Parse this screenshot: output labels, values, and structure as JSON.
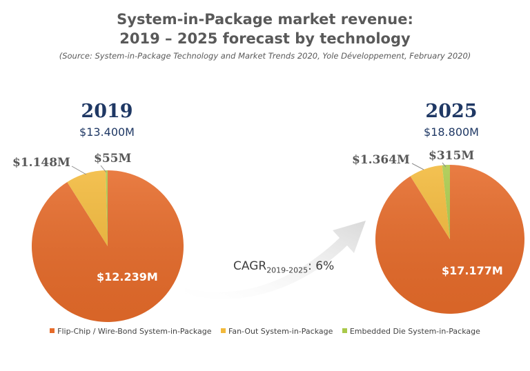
{
  "title_line1": "System-in-Package market revenue:",
  "title_line2": "2019 – 2025 forecast by technology",
  "source": "(Source: System-in-Package Technology and Market Trends 2020, Yole Développement, February 2020)",
  "cagr": {
    "prefix": "CAGR",
    "subscript": "2019-2025",
    "suffix": ": 6%"
  },
  "colors": {
    "flip_chip": "#e66b2a",
    "fan_out": "#f2b93b",
    "embedded": "#a9c94a"
  },
  "chart_data": [
    {
      "type": "pie",
      "title": "2019",
      "total_label": "$13.400M",
      "categories": [
        "Flip-Chip / Wire-Bond System-in-Package",
        "Fan-Out System-in-Package",
        "Embedded Die System-in-Package"
      ],
      "values": [
        12239,
        1148,
        55
      ],
      "labels": [
        "$12.239M",
        "$1.148M",
        "$55M"
      ]
    },
    {
      "type": "pie",
      "title": "2025",
      "total_label": "$18.800M",
      "categories": [
        "Flip-Chip / Wire-Bond System-in-Package",
        "Fan-Out System-in-Package",
        "Embedded Die System-in-Package"
      ],
      "values": [
        17177,
        1364,
        315
      ],
      "labels": [
        "$17.177M",
        "$1.364M",
        "$315M"
      ]
    }
  ],
  "legend": [
    {
      "label": "Flip-Chip / Wire-Bond System-in-Package",
      "color": "#e66b2a"
    },
    {
      "label": "Fan-Out System-in-Package",
      "color": "#f2b93b"
    },
    {
      "label": "Embedded Die System-in-Package",
      "color": "#a9c94a"
    }
  ]
}
